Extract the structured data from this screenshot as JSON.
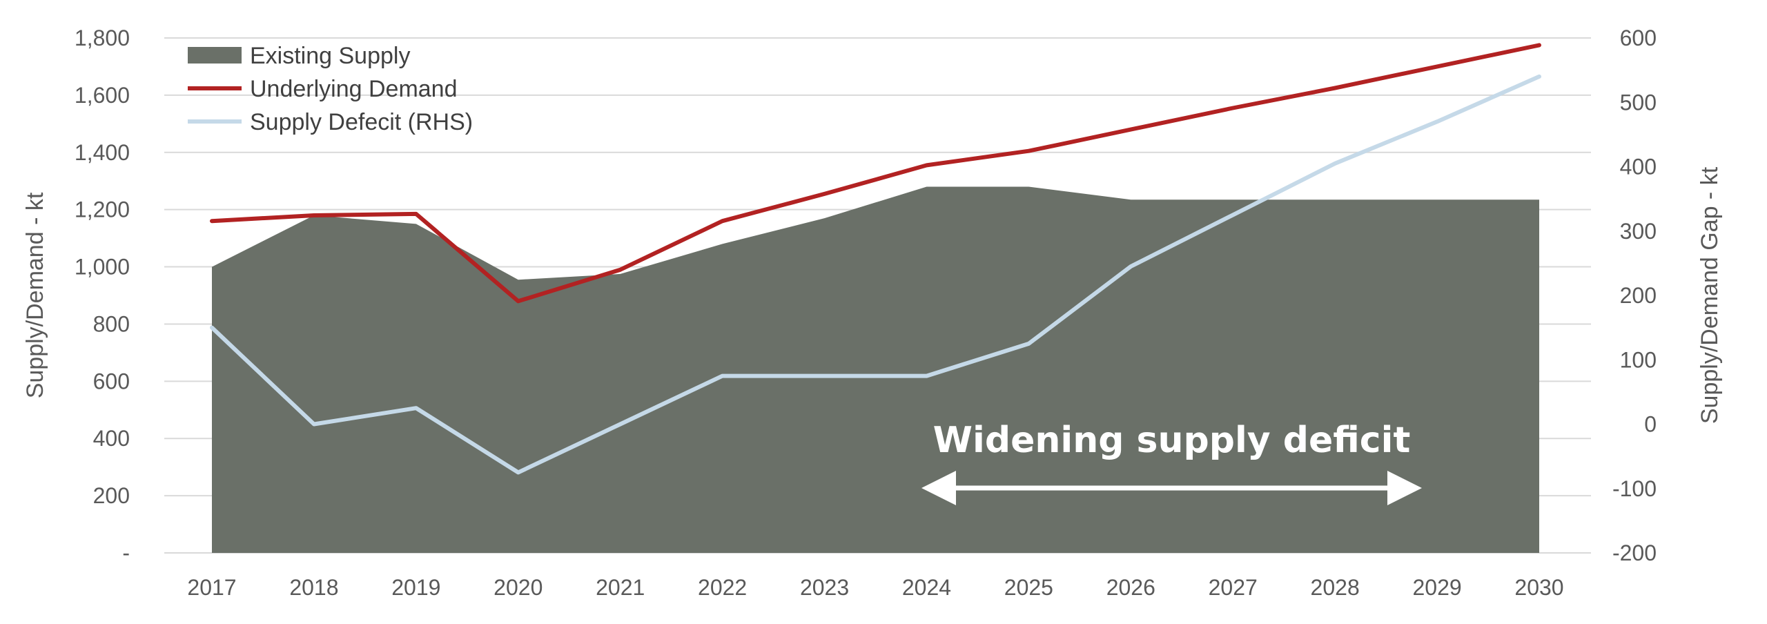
{
  "chart_data": {
    "type": "area",
    "title": "",
    "xlabel": "",
    "ylabel": "Supply/Demand  - kt",
    "y2label": "Supply/Demand  Gap - kt",
    "ylim": [
      0,
      1800
    ],
    "y2lim": [
      -200,
      600
    ],
    "yticks": [
      "-",
      "200",
      "400",
      "600",
      "800",
      "1,000",
      "1,200",
      "1,400",
      "1,600",
      "1,800"
    ],
    "y2ticks": [
      "-200",
      "-100",
      "0",
      "100",
      "200",
      "300",
      "400",
      "500",
      "600"
    ],
    "categories": [
      "2017",
      "2018",
      "2019",
      "2020",
      "2021",
      "2022",
      "2023",
      "2024",
      "2025",
      "2026",
      "2027",
      "2028",
      "2029",
      "2030"
    ],
    "series": [
      {
        "name": "Existing Supply",
        "kind": "area",
        "axis": "left",
        "color": "#6a7068",
        "values": [
          1000,
          1180,
          1150,
          955,
          975,
          1080,
          1170,
          1280,
          1280,
          1235,
          1235,
          1235,
          1235,
          1235
        ]
      },
      {
        "name": "Underlying Demand",
        "kind": "line",
        "axis": "left",
        "color": "#b22222",
        "values": [
          1160,
          1180,
          1185,
          880,
          990,
          1160,
          1255,
          1355,
          1405,
          1480,
          1555,
          1625,
          1700,
          1775
        ]
      },
      {
        "name": "Supply Defecit (RHS)",
        "kind": "line",
        "axis": "right",
        "color": "#c5d9e8",
        "values": [
          150,
          0,
          25,
          -75,
          0,
          75,
          75,
          75,
          125,
          245,
          325,
          405,
          470,
          540
        ]
      }
    ],
    "annotation": "Widening supply deficit",
    "legend": "top-left",
    "grid": true,
    "gridline_color": "#d9d9d9"
  }
}
